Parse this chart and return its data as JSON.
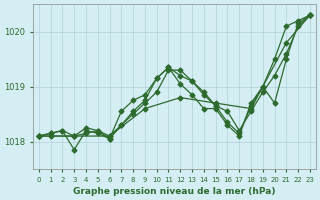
{
  "xlabel": "Graphe pression niveau de la mer (hPa)",
  "ylabel": "",
  "x_ticks": [
    0,
    1,
    2,
    3,
    4,
    5,
    6,
    7,
    8,
    9,
    10,
    11,
    12,
    13,
    14,
    15,
    16,
    17,
    18,
    19,
    20,
    21,
    22,
    23
  ],
  "ylim": [
    1017.5,
    1020.5
  ],
  "yticks": [
    1018,
    1019,
    1020
  ],
  "background_color": "#d4eef4",
  "grid_color": "#b0d0d8",
  "line_color": "#2d6a2d",
  "line1": {
    "x": [
      0,
      1,
      2,
      3,
      4,
      5,
      6,
      7,
      8,
      9,
      10,
      11,
      12,
      13,
      14,
      15,
      16,
      17,
      18,
      19,
      20,
      21,
      22,
      23
    ],
    "y": [
      1018.1,
      1018.15,
      1018.2,
      1017.85,
      1018.2,
      1018.15,
      1018.05,
      1018.3,
      1018.55,
      1018.75,
      1019.15,
      1019.35,
      1019.2,
      1019.1,
      1018.85,
      1018.65,
      1018.35,
      1018.15,
      1018.65,
      1019.0,
      1019.5,
      1020.1,
      1020.2,
      1020.3
    ]
  },
  "line2": {
    "x": [
      0,
      1,
      3,
      4,
      5,
      6,
      7,
      8,
      9,
      10,
      11,
      12,
      13,
      14,
      15,
      16,
      17,
      18,
      19,
      20,
      21,
      22,
      23
    ],
    "y": [
      1018.1,
      1018.1,
      1018.1,
      1018.15,
      1018.2,
      1018.1,
      1018.3,
      1018.5,
      1018.7,
      1018.9,
      1019.3,
      1019.3,
      1019.1,
      1018.9,
      1018.65,
      1018.55,
      1018.2,
      1018.55,
      1018.9,
      1019.2,
      1019.6,
      1020.1,
      1020.3
    ]
  },
  "line3": {
    "x": [
      0,
      3,
      6,
      9,
      12,
      15,
      18,
      21,
      23
    ],
    "y": [
      1018.1,
      1018.1,
      1018.1,
      1018.6,
      1018.8,
      1018.7,
      1018.6,
      1019.8,
      1020.3
    ]
  },
  "line4": {
    "x": [
      0,
      1,
      2,
      3,
      4,
      5,
      6,
      7,
      8,
      9,
      10,
      11,
      12,
      13,
      14,
      15,
      16,
      17,
      18,
      19,
      20,
      21,
      22,
      23
    ],
    "y": [
      1018.1,
      1018.15,
      1018.2,
      1018.1,
      1018.25,
      1018.2,
      1018.05,
      1018.55,
      1018.75,
      1018.85,
      1019.15,
      1019.35,
      1019.05,
      1018.85,
      1018.6,
      1018.6,
      1018.3,
      1018.1,
      1018.7,
      1019.0,
      1018.7,
      1019.5,
      1020.15,
      1020.3
    ]
  }
}
